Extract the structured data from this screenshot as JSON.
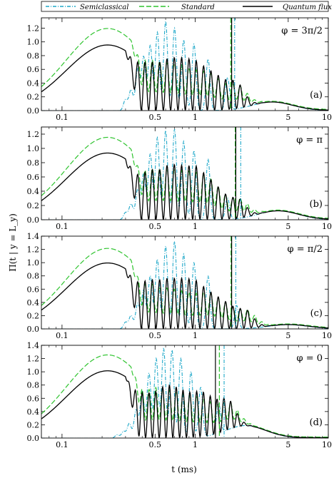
{
  "figure": {
    "ylabel": "Π(t | y = L_y)",
    "xlabel": "t (ms)",
    "legend": [
      {
        "name": "Semiclassical",
        "color": "#1fa8c9",
        "dash": "dashdot"
      },
      {
        "name": "Standard",
        "color": "#2fc42f",
        "dash": "dash"
      },
      {
        "name": "Quantum flux",
        "color": "#000000",
        "dash": "solid"
      }
    ]
  },
  "chart_data": [
    {
      "type": "line",
      "panel": "(a)",
      "phase_label": "φ = 3π/2",
      "xscale": "log",
      "xlim": [
        0.07,
        10
      ],
      "ylim": [
        0,
        1.35
      ],
      "xticks": [
        "0.1",
        "0.5",
        "1",
        "5",
        "10"
      ],
      "yticks": [
        "0.0",
        "0.2",
        "0.4",
        "0.6",
        "0.8",
        "1.0",
        "1.2"
      ],
      "std_env": {
        "amp": 1.18,
        "peak": 0.22
      },
      "qf_env": {
        "amp": 0.95,
        "peak": 0.22
      },
      "semi_osc": [
        [
          0.3,
          0.16
        ],
        [
          0.33,
          0.3
        ],
        [
          0.37,
          0.6
        ],
        [
          0.41,
          0.78
        ],
        [
          0.46,
          0.95
        ],
        [
          0.52,
          1.14
        ],
        [
          0.6,
          1.3
        ],
        [
          0.7,
          1.2
        ],
        [
          0.82,
          1.03
        ],
        [
          0.98,
          0.97
        ],
        [
          1.25,
          0.75
        ],
        [
          1.75,
          0.47
        ]
      ],
      "qf_osc": [
        [
          0.37,
          0.7
        ],
        [
          0.42,
          0.7
        ],
        [
          0.48,
          0.7
        ],
        [
          0.55,
          0.7
        ],
        [
          0.63,
          0.76
        ],
        [
          0.72,
          0.77
        ],
        [
          0.84,
          0.76
        ],
        [
          1.0,
          0.73
        ],
        [
          1.25,
          0.6
        ],
        [
          1.75,
          0.42
        ]
      ],
      "std_osc": [
        [
          0.37,
          0.68
        ],
        [
          0.42,
          0.72
        ],
        [
          0.48,
          0.72
        ],
        [
          0.55,
          0.7
        ],
        [
          0.63,
          0.68
        ],
        [
          0.72,
          0.67
        ],
        [
          0.84,
          0.63
        ],
        [
          1.0,
          0.58
        ],
        [
          1.25,
          0.55
        ],
        [
          1.75,
          0.35
        ]
      ],
      "tail": {
        "pos": 3.8,
        "height": 0.12
      },
      "vlines": {
        "quantum_flux": 1.88,
        "standard": 1.85,
        "semiclassical": 1.98
      }
    },
    {
      "type": "line",
      "panel": "(b)",
      "phase_label": "φ = π",
      "xscale": "log",
      "xlim": [
        0.07,
        10
      ],
      "ylim": [
        0,
        1.3
      ],
      "xticks": [
        "0.1",
        "0.5",
        "1",
        "5",
        "10"
      ],
      "yticks": [
        "0.0",
        "0.2",
        "0.4",
        "0.6",
        "0.8",
        "1.0",
        "1.2"
      ],
      "std_env": {
        "amp": 1.14,
        "peak": 0.22
      },
      "qf_env": {
        "amp": 0.93,
        "peak": 0.22
      },
      "semi_osc": [
        [
          0.3,
          0.1
        ],
        [
          0.33,
          0.22
        ],
        [
          0.37,
          0.42
        ],
        [
          0.41,
          0.64
        ],
        [
          0.46,
          0.92
        ],
        [
          0.52,
          1.15
        ],
        [
          0.6,
          1.25
        ],
        [
          0.7,
          1.27
        ],
        [
          0.82,
          1.1
        ],
        [
          0.98,
          0.97
        ],
        [
          1.25,
          0.85
        ],
        [
          1.75,
          0.3
        ]
      ],
      "qf_osc": [
        [
          0.37,
          0.62
        ],
        [
          0.42,
          0.66
        ],
        [
          0.48,
          0.7
        ],
        [
          0.55,
          0.7
        ],
        [
          0.63,
          0.77
        ],
        [
          0.72,
          0.77
        ],
        [
          0.84,
          0.75
        ],
        [
          1.0,
          0.76
        ],
        [
          1.25,
          0.6
        ],
        [
          1.8,
          0.3
        ]
      ],
      "std_osc": [
        [
          0.37,
          0.6
        ],
        [
          0.42,
          0.68
        ],
        [
          0.48,
          0.7
        ],
        [
          0.55,
          0.7
        ],
        [
          0.63,
          0.7
        ],
        [
          0.72,
          0.68
        ],
        [
          0.84,
          0.67
        ],
        [
          1.0,
          0.65
        ],
        [
          1.25,
          0.6
        ],
        [
          1.8,
          0.28
        ]
      ],
      "tail": {
        "pos": 4.2,
        "height": 0.12
      },
      "vlines": {
        "quantum_flux": 2.02,
        "standard": 2.0,
        "semiclassical": 2.2
      }
    },
    {
      "type": "line",
      "panel": "(c)",
      "phase_label": "φ = π/2",
      "xscale": "log",
      "xlim": [
        0.07,
        10
      ],
      "ylim": [
        0,
        1.4
      ],
      "xticks": [
        "0.1",
        "0.5",
        "1",
        "5",
        "10"
      ],
      "yticks": [
        "0.0",
        "0.2",
        "0.4",
        "0.6",
        "0.8",
        "1.0",
        "1.2",
        "1.4"
      ],
      "std_env": {
        "amp": 1.2,
        "peak": 0.22
      },
      "qf_env": {
        "amp": 0.99,
        "peak": 0.22
      },
      "semi_osc": [
        [
          0.3,
          0.1
        ],
        [
          0.33,
          0.2
        ],
        [
          0.37,
          0.38
        ],
        [
          0.41,
          0.58
        ],
        [
          0.46,
          0.8
        ],
        [
          0.52,
          1.05
        ],
        [
          0.6,
          1.25
        ],
        [
          0.7,
          1.32
        ],
        [
          0.82,
          1.13
        ],
        [
          0.98,
          1.0
        ],
        [
          1.25,
          0.8
        ],
        [
          2.05,
          0.35
        ]
      ],
      "qf_osc": [
        [
          0.37,
          0.7
        ],
        [
          0.42,
          0.72
        ],
        [
          0.48,
          0.74
        ],
        [
          0.55,
          0.74
        ],
        [
          0.63,
          0.76
        ],
        [
          0.72,
          0.76
        ],
        [
          0.84,
          0.76
        ],
        [
          1.0,
          0.74
        ],
        [
          1.25,
          0.58
        ],
        [
          2.05,
          0.3
        ]
      ],
      "std_osc": [
        [
          0.37,
          0.62
        ],
        [
          0.42,
          0.66
        ],
        [
          0.48,
          0.66
        ],
        [
          0.55,
          0.62
        ],
        [
          0.63,
          0.6
        ],
        [
          0.72,
          0.58
        ],
        [
          0.84,
          0.55
        ],
        [
          1.0,
          0.52
        ],
        [
          1.25,
          0.55
        ],
        [
          2.05,
          0.28
        ]
      ],
      "tail": {
        "pos": 5.0,
        "height": 0.06
      },
      "vlines": {
        "quantum_flux": 1.88,
        "standard": 1.86,
        "semiclassical": 2.02
      }
    },
    {
      "type": "line",
      "panel": "(d)",
      "phase_label": "φ = 0",
      "xscale": "log",
      "xlim": [
        0.07,
        10
      ],
      "ylim": [
        0,
        1.4
      ],
      "xticks": [
        "0.1",
        "0.5",
        "1",
        "5",
        "10"
      ],
      "yticks": [
        "0.0",
        "0.2",
        "0.4",
        "0.6",
        "0.8",
        "1.0",
        "1.2",
        "1.4"
      ],
      "std_env": {
        "amp": 1.24,
        "peak": 0.22
      },
      "qf_env": {
        "amp": 1.01,
        "peak": 0.22
      },
      "semi_osc": [
        [
          0.26,
          0.05
        ],
        [
          0.29,
          0.1
        ],
        [
          0.32,
          0.22
        ],
        [
          0.36,
          0.42
        ],
        [
          0.4,
          0.7
        ],
        [
          0.45,
          0.98
        ],
        [
          0.51,
          1.2
        ],
        [
          0.58,
          1.35
        ],
        [
          0.67,
          1.33
        ],
        [
          0.78,
          1.2
        ],
        [
          0.93,
          1.0
        ],
        [
          1.1,
          0.75
        ],
        [
          1.5,
          0.45
        ]
      ],
      "qf_osc": [
        [
          0.4,
          0.68
        ],
        [
          0.45,
          0.68
        ],
        [
          0.51,
          0.7
        ],
        [
          0.58,
          0.78
        ],
        [
          0.67,
          0.8
        ],
        [
          0.78,
          0.73
        ],
        [
          0.93,
          0.68
        ],
        [
          1.1,
          0.7
        ],
        [
          1.5,
          0.5
        ]
      ],
      "std_osc": [
        [
          0.4,
          0.7
        ],
        [
          0.45,
          0.72
        ],
        [
          0.51,
          0.75
        ],
        [
          0.58,
          0.72
        ],
        [
          0.67,
          0.7
        ],
        [
          0.78,
          0.68
        ],
        [
          0.93,
          0.62
        ],
        [
          1.1,
          0.58
        ],
        [
          1.5,
          0.42
        ]
      ],
      "tail": {
        "pos": 2.4,
        "height": 0.18
      },
      "vlines": {
        "quantum_flux": 1.42,
        "standard": 1.52,
        "semiclassical": 1.65
      }
    }
  ]
}
